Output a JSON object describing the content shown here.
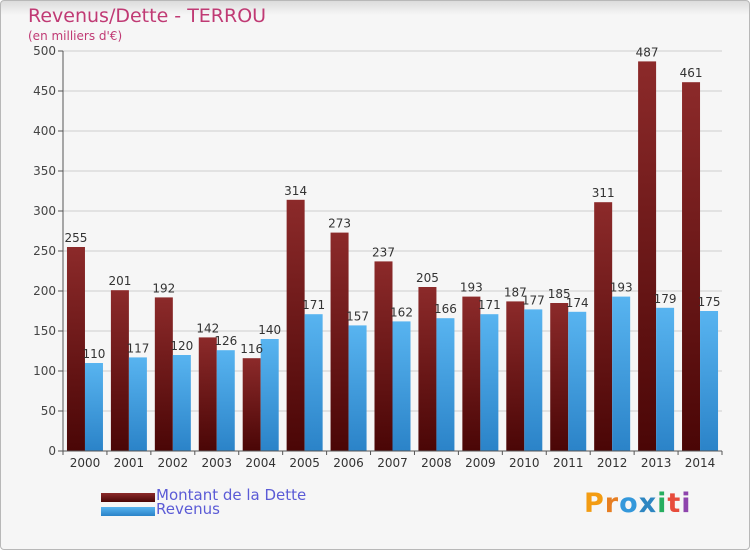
{
  "chart_data": {
    "type": "bar",
    "title": "Revenus/Dette - TERROU",
    "subtitle": "(en milliers d'€)",
    "categories": [
      "2000",
      "2001",
      "2002",
      "2003",
      "2004",
      "2005",
      "2006",
      "2007",
      "2008",
      "2009",
      "2010",
      "2011",
      "2012",
      "2013",
      "2014"
    ],
    "series": [
      {
        "name": "Montant de la Dette",
        "color": "#7a1c1c",
        "values": [
          255,
          201,
          192,
          142,
          116,
          314,
          273,
          237,
          205,
          193,
          187,
          185,
          311,
          487,
          461
        ]
      },
      {
        "name": "Revenus",
        "color": "#3a9ee4",
        "values": [
          110,
          117,
          120,
          126,
          140,
          171,
          157,
          162,
          166,
          171,
          177,
          174,
          193,
          179,
          175
        ]
      }
    ],
    "ylim": [
      0,
      500
    ],
    "yticks": [
      "0",
      "50",
      "100",
      "150",
      "200",
      "250",
      "300",
      "350",
      "400",
      "450",
      "500"
    ],
    "grid": true,
    "legend_position": "bottom-left"
  },
  "brand": {
    "letters": [
      "P",
      "r",
      "o",
      "x",
      "i",
      "t",
      "i"
    ],
    "colors": [
      "#f39c12",
      "#e67e22",
      "#3498db",
      "#2e86c1",
      "#27ae60",
      "#e74c3c",
      "#8e44ad"
    ]
  }
}
